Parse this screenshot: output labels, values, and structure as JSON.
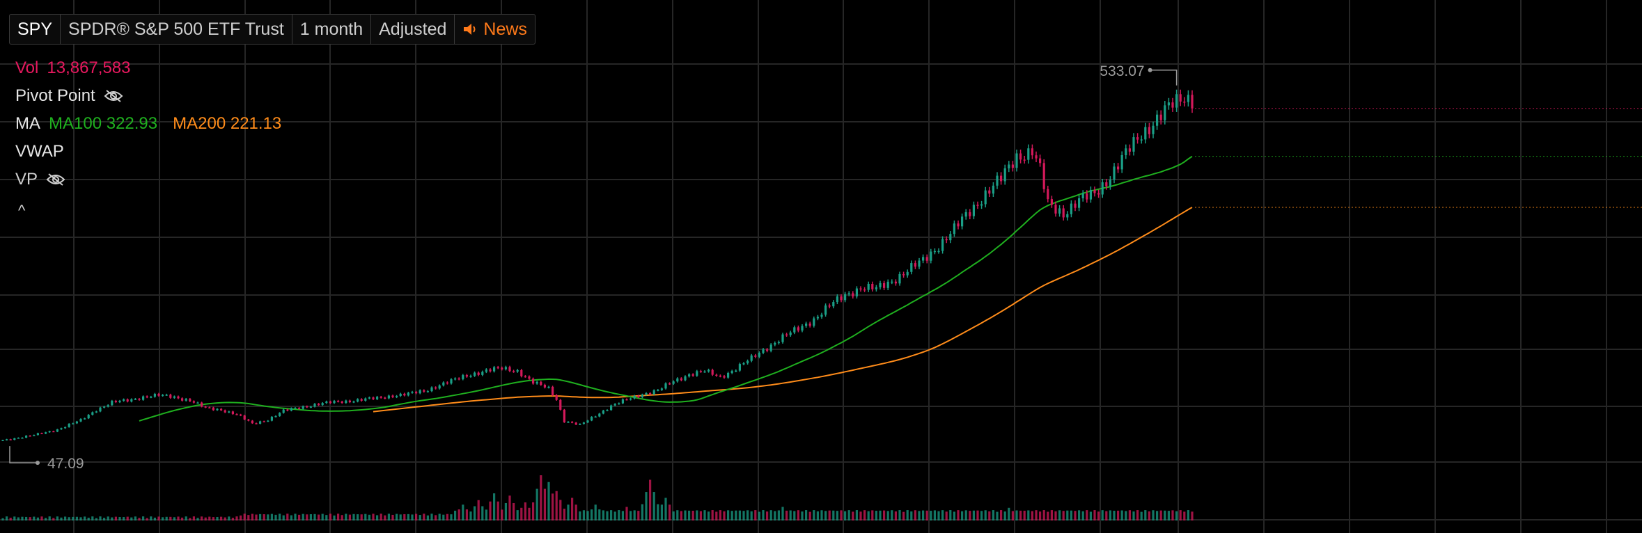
{
  "toolbar": {
    "symbol": "SPY",
    "name": "SPDR® S&P 500 ETF Trust",
    "interval": "1 month",
    "adjustment": "Adjusted",
    "news_label": "News"
  },
  "legend": {
    "vol_label": "Vol",
    "vol_value": "13,867,583",
    "pivot_label": "Pivot Point",
    "ma_label": "MA",
    "ma100_label": "MA100",
    "ma100_value": "322.93",
    "ma200_label": "MA200",
    "ma200_value": "221.13",
    "vwap_label": "VWAP",
    "vp_label": "VP",
    "collapse_glyph": "^"
  },
  "colors": {
    "background": "#000000",
    "grid": "#262626",
    "up": "#1a9e86",
    "down": "#d3195a",
    "ma100": "#1fb01f",
    "ma200": "#ff8c1a",
    "vol_text": "#e8195f",
    "news": "#ff7a1a"
  },
  "icons": {
    "news": "speaker-icon",
    "pivot_visibility": "eye-off-icon",
    "vp_visibility": "eye-off-icon"
  },
  "chart_data": {
    "type": "candlestick",
    "interval": "1 month",
    "price_range": [
      20,
      560
    ],
    "max_label": "533.07",
    "min_label": "47.09",
    "series": [
      {
        "name": "MA100",
        "last": 322.93
      },
      {
        "name": "MA200",
        "last": 221.13
      }
    ],
    "waypoints": [
      [
        0,
        47
      ],
      [
        8,
        54
      ],
      [
        14,
        62
      ],
      [
        20,
        75
      ],
      [
        24,
        90
      ],
      [
        28,
        100
      ],
      [
        32,
        103
      ],
      [
        36,
        108
      ],
      [
        40,
        110
      ],
      [
        44,
        108
      ],
      [
        48,
        103
      ],
      [
        52,
        92
      ],
      [
        56,
        90
      ],
      [
        60,
        83
      ],
      [
        64,
        70
      ],
      [
        68,
        76
      ],
      [
        72,
        88
      ],
      [
        76,
        93
      ],
      [
        80,
        97
      ],
      [
        84,
        100
      ],
      [
        88,
        102
      ],
      [
        92,
        104
      ],
      [
        96,
        106
      ],
      [
        100,
        110
      ],
      [
        104,
        112
      ],
      [
        108,
        116
      ],
      [
        112,
        125
      ],
      [
        116,
        132
      ],
      [
        120,
        140
      ],
      [
        124,
        145
      ],
      [
        128,
        148
      ],
      [
        132,
        145
      ],
      [
        136,
        128
      ],
      [
        140,
        120
      ],
      [
        142,
        105
      ],
      [
        144,
        74
      ],
      [
        148,
        68
      ],
      [
        152,
        82
      ],
      [
        156,
        95
      ],
      [
        160,
        104
      ],
      [
        164,
        112
      ],
      [
        168,
        117
      ],
      [
        172,
        130
      ],
      [
        176,
        140
      ],
      [
        180,
        144
      ],
      [
        184,
        136
      ],
      [
        188,
        148
      ],
      [
        192,
        162
      ],
      [
        196,
        178
      ],
      [
        200,
        192
      ],
      [
        204,
        204
      ],
      [
        208,
        218
      ],
      [
        212,
        236
      ],
      [
        216,
        252
      ],
      [
        220,
        262
      ],
      [
        224,
        260
      ],
      [
        228,
        272
      ],
      [
        232,
        286
      ],
      [
        236,
        300
      ],
      [
        240,
        322
      ],
      [
        244,
        344
      ],
      [
        248,
        370
      ],
      [
        252,
        395
      ],
      [
        256,
        415
      ],
      [
        260,
        448
      ],
      [
        264,
        455
      ],
      [
        266,
        428
      ],
      [
        268,
        380
      ],
      [
        272,
        368
      ],
      [
        276,
        384
      ],
      [
        280,
        395
      ],
      [
        284,
        420
      ],
      [
        288,
        450
      ],
      [
        292,
        480
      ],
      [
        296,
        500
      ],
      [
        300,
        520
      ],
      [
        303,
        533
      ],
      [
        305,
        528
      ]
    ],
    "volume_spikes": [
      [
        118,
        0.35
      ],
      [
        122,
        0.45
      ],
      [
        126,
        0.6
      ],
      [
        130,
        0.55
      ],
      [
        134,
        0.4
      ],
      [
        138,
        1.0
      ],
      [
        140,
        0.85
      ],
      [
        142,
        0.65
      ],
      [
        146,
        0.5
      ],
      [
        152,
        0.35
      ],
      [
        160,
        0.3
      ],
      [
        166,
        0.9
      ],
      [
        170,
        0.5
      ],
      [
        200,
        0.3
      ],
      [
        214,
        0.2
      ],
      [
        258,
        0.28
      ]
    ]
  }
}
